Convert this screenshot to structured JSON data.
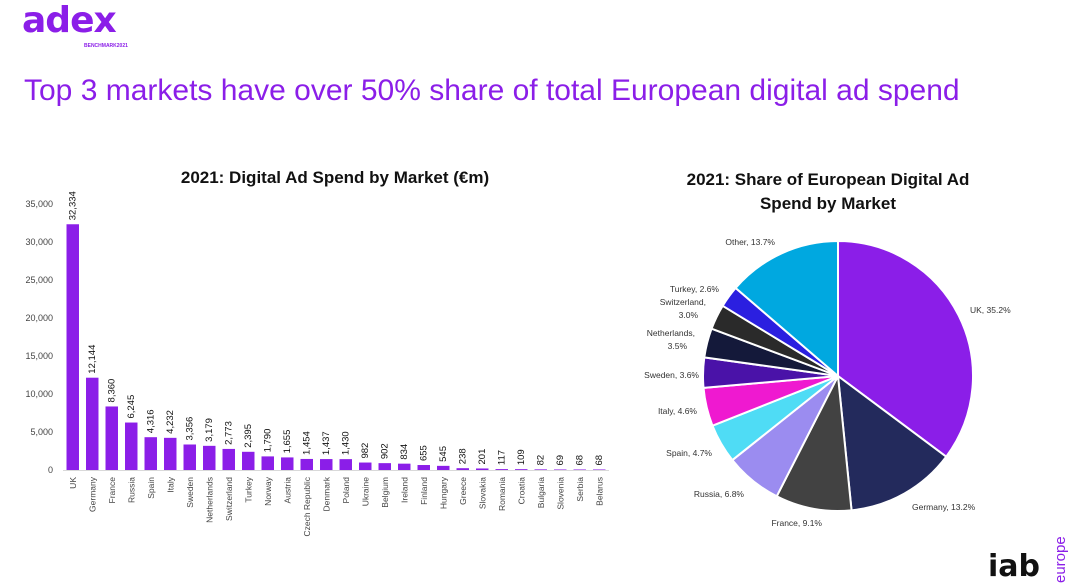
{
  "logo": {
    "word": "adex",
    "sub": "BENCHMARK2021"
  },
  "headline": "Top 3 markets have over 50% share of total European digital ad spend",
  "footer_logo": {
    "word": "iab",
    "sub": "europe"
  },
  "colors": {
    "accent": "#8b1ee8",
    "bar": "#8b1ee8"
  },
  "chart_data": [
    {
      "type": "bar",
      "title": "2021: Digital Ad Spend by Market (€m)",
      "xlabel": "",
      "ylabel": "",
      "ylim": [
        0,
        35000
      ],
      "yticks": [
        "0",
        "5,000",
        "10,000",
        "15,000",
        "20,000",
        "25,000",
        "30,000",
        "35,000"
      ],
      "ytick_values": [
        0,
        5000,
        10000,
        15000,
        20000,
        25000,
        30000,
        35000
      ],
      "categories": [
        "UK",
        "Germany",
        "France",
        "Russia",
        "Spain",
        "Italy",
        "Sweden",
        "Netherlands",
        "Switzerland",
        "Turkey",
        "Norway",
        "Austria",
        "Czech Republic",
        "Denmark",
        "Poland",
        "Ukraine",
        "Belgium",
        "Ireland",
        "Finland",
        "Hungary",
        "Greece",
        "Slovakia",
        "Romania",
        "Croatia",
        "Bulgaria",
        "Slovenia",
        "Serbia",
        "Belarus"
      ],
      "values": [
        32334,
        12144,
        8360,
        6245,
        4316,
        4232,
        3356,
        3179,
        2773,
        2395,
        1790,
        1655,
        1454,
        1437,
        1430,
        982,
        902,
        834,
        655,
        545,
        238,
        201,
        117,
        109,
        82,
        69,
        68,
        68
      ],
      "labels": [
        "32,334",
        "12,144",
        "8,360",
        "6,245",
        "4,316",
        "4,232",
        "3,356",
        "3,179",
        "2,773",
        "2,395",
        "1,790",
        "1,655",
        "1,454",
        "1,437",
        "1,430",
        "982",
        "902",
        "834",
        "655",
        "545",
        "238",
        "201",
        "117",
        "109",
        "82",
        "69",
        "68",
        "68"
      ]
    },
    {
      "type": "pie",
      "title": "2021: Share of European Digital Ad Spend by Market",
      "slices": [
        {
          "label": "UK, 35.2%",
          "value": 35.2,
          "color": "#8b1ee8"
        },
        {
          "label": "Germany, 13.2%",
          "value": 13.2,
          "color": "#232a5c"
        },
        {
          "label": "France, 9.1%",
          "value": 9.1,
          "color": "#424242"
        },
        {
          "label": "Russia, 6.8%",
          "value": 6.8,
          "color": "#9b8cf0"
        },
        {
          "label": "Spain, 4.7%",
          "value": 4.7,
          "color": "#4fdcf5"
        },
        {
          "label": "Italy, 4.6%",
          "value": 4.6,
          "color": "#ef19d0"
        },
        {
          "label": "Sweden, 3.6%",
          "value": 3.6,
          "color": "#4a12a8"
        },
        {
          "label": "Netherlands, 3.5%",
          "value": 3.5,
          "color": "#14193a"
        },
        {
          "label": "Switzerland, 3.0%",
          "value": 3.0,
          "color": "#2a2a2a"
        },
        {
          "label": "Turkey, 2.6%",
          "value": 2.6,
          "color": "#2b1fe0"
        },
        {
          "label": "Other, 13.7%",
          "value": 13.7,
          "color": "#00a8e0"
        }
      ]
    }
  ]
}
